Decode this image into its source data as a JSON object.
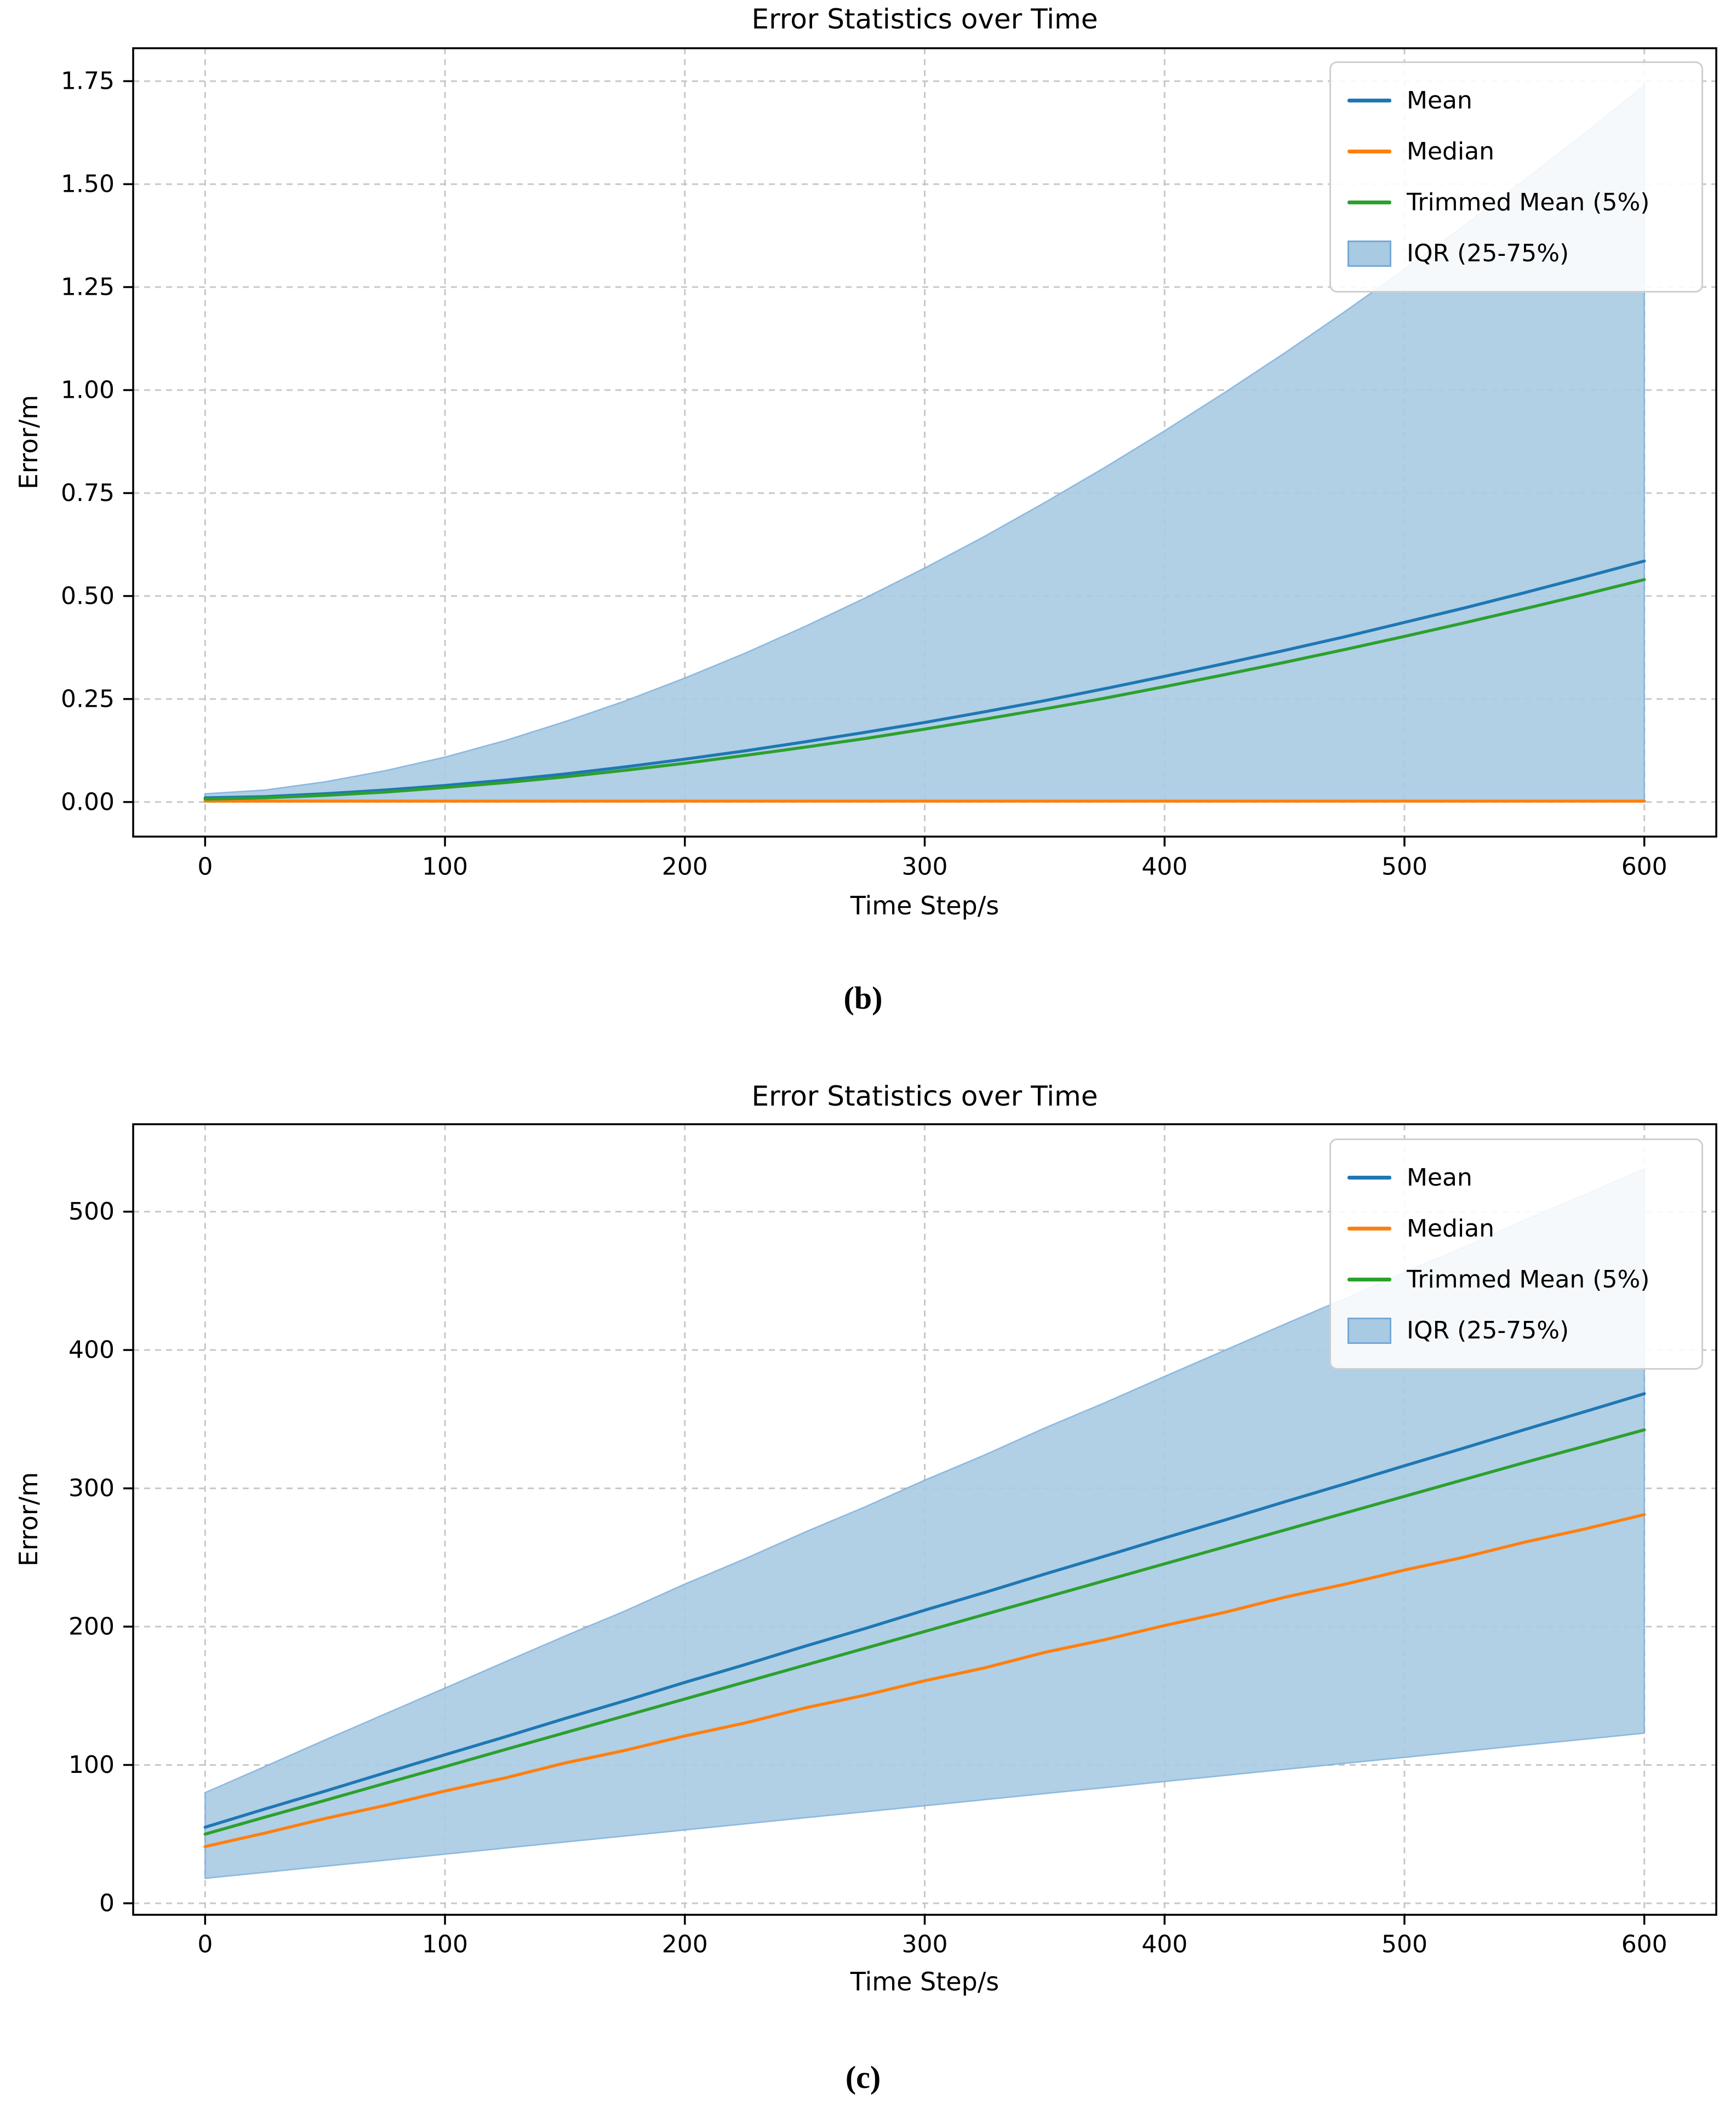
{
  "page": {
    "background": "#ffffff"
  },
  "style": {
    "grid_color": "#c8c8c8",
    "spine_color": "#000000",
    "text_color": "#000000",
    "legend_border": "#cfcfcf"
  },
  "captions": {
    "b": "(b)",
    "c": "(c)"
  },
  "chart_data": [
    {
      "id": "b",
      "type": "line",
      "title": "Error Statistics over Time",
      "xlabel": "Time Step/s",
      "ylabel": "Error/m",
      "grid": true,
      "legend_position": "upper right",
      "xlim": [
        -30,
        630
      ],
      "ylim": [
        -0.084,
        1.83
      ],
      "xticks": [
        0,
        100,
        200,
        300,
        400,
        500,
        600
      ],
      "xtick_labels": [
        "0",
        "100",
        "200",
        "300",
        "400",
        "500",
        "600"
      ],
      "yticks": [
        0.0,
        0.25,
        0.5,
        0.75,
        1.0,
        1.25,
        1.5,
        1.75
      ],
      "ytick_labels": [
        "0.00",
        "0.25",
        "0.50",
        "0.75",
        "1.00",
        "1.25",
        "1.50",
        "1.75"
      ],
      "x": [
        0,
        25,
        50,
        75,
        100,
        125,
        150,
        175,
        200,
        225,
        250,
        275,
        300,
        325,
        350,
        375,
        400,
        425,
        450,
        475,
        500,
        525,
        550,
        575,
        600
      ],
      "series": [
        {
          "name": "Mean",
          "color": "#1f77b4",
          "values": [
            0.01,
            0.013,
            0.02,
            0.029,
            0.04,
            0.053,
            0.068,
            0.085,
            0.104,
            0.124,
            0.146,
            0.169,
            0.193,
            0.219,
            0.246,
            0.275,
            0.305,
            0.336,
            0.368,
            0.401,
            0.436,
            0.471,
            0.508,
            0.546,
            0.585
          ]
        },
        {
          "name": "Median",
          "color": "#ff7f0e",
          "values": [
            0.002,
            0.002,
            0.002,
            0.002,
            0.002,
            0.002,
            0.002,
            0.002,
            0.002,
            0.002,
            0.002,
            0.002,
            0.002,
            0.002,
            0.002,
            0.002,
            0.002,
            0.002,
            0.002,
            0.002,
            0.002,
            0.002,
            0.002,
            0.002,
            0.002
          ]
        },
        {
          "name": "Trimmed Mean (5%)",
          "color": "#2ca02c",
          "values": [
            0.007,
            0.01,
            0.016,
            0.024,
            0.035,
            0.047,
            0.061,
            0.077,
            0.094,
            0.113,
            0.133,
            0.154,
            0.177,
            0.201,
            0.226,
            0.252,
            0.28,
            0.309,
            0.339,
            0.37,
            0.402,
            0.435,
            0.469,
            0.504,
            0.54
          ]
        }
      ],
      "band": {
        "name": "IQR (25-75%)",
        "fill": "#a8cae2",
        "edge": "#74a9d8",
        "upper": [
          0.02,
          0.029,
          0.049,
          0.076,
          0.109,
          0.149,
          0.195,
          0.245,
          0.301,
          0.361,
          0.426,
          0.495,
          0.568,
          0.645,
          0.727,
          0.812,
          0.901,
          0.994,
          1.09,
          1.19,
          1.293,
          1.4,
          1.51,
          1.623,
          1.74
        ],
        "lower": [
          0.001,
          0.001,
          0.001,
          0.001,
          0.001,
          0.001,
          0.001,
          0.001,
          0.001,
          0.001,
          0.001,
          0.001,
          0.001,
          0.001,
          0.001,
          0.001,
          0.001,
          0.001,
          0.001,
          0.001,
          0.001,
          0.001,
          0.001,
          0.001,
          0.001
        ]
      }
    },
    {
      "id": "c",
      "type": "line",
      "title": "Error Statistics over Time",
      "xlabel": "Time Step/s",
      "ylabel": "Error/m",
      "grid": true,
      "legend_position": "upper right",
      "xlim": [
        -30,
        630
      ],
      "ylim": [
        -8.3,
        563.2
      ],
      "xticks": [
        0,
        100,
        200,
        300,
        400,
        500,
        600
      ],
      "xtick_labels": [
        "0",
        "100",
        "200",
        "300",
        "400",
        "500",
        "600"
      ],
      "yticks": [
        0,
        100,
        200,
        300,
        400,
        500
      ],
      "ytick_labels": [
        "0",
        "100",
        "200",
        "300",
        "400",
        "500"
      ],
      "x": [
        0,
        25,
        50,
        75,
        100,
        125,
        150,
        175,
        200,
        225,
        250,
        275,
        300,
        325,
        350,
        375,
        400,
        425,
        450,
        475,
        500,
        525,
        550,
        575,
        600
      ],
      "series": [
        {
          "name": "Mean",
          "color": "#1f77b4",
          "values": [
            55.0,
            68.2,
            81.1,
            94.3,
            107.4,
            120.3,
            133.6,
            146.4,
            159.7,
            172.5,
            185.8,
            198.6,
            211.9,
            224.7,
            238.0,
            250.9,
            264.1,
            277.0,
            290.2,
            303.1,
            316.3,
            329.2,
            342.4,
            355.3,
            368.4
          ]
        },
        {
          "name": "Median",
          "color": "#ff7f0e",
          "values": [
            41.0,
            50.8,
            61.3,
            70.7,
            81.2,
            90.6,
            101.4,
            110.5,
            121.0,
            130.3,
            141.2,
            150.4,
            160.9,
            170.2,
            181.4,
            190.5,
            200.8,
            210.3,
            221.2,
            230.6,
            240.9,
            250.3,
            261.0,
            270.5,
            281.0
          ]
        },
        {
          "name": "Trimmed Mean (5%)",
          "color": "#2ca02c",
          "values": [
            50.0,
            62.3,
            74.4,
            86.7,
            98.8,
            111.1,
            123.3,
            135.5,
            147.7,
            159.9,
            172.1,
            184.3,
            196.5,
            208.8,
            221.0,
            233.2,
            245.4,
            257.6,
            269.8,
            282.0,
            294.2,
            306.4,
            318.6,
            330.4,
            342.3
          ]
        }
      ],
      "band": {
        "name": "IQR (25-75%)",
        "fill": "#a8cae2",
        "edge": "#74a9d8",
        "upper": [
          80.0,
          99.0,
          118.1,
          136.9,
          155.6,
          174.5,
          193.2,
          211.3,
          230.8,
          249.0,
          268.3,
          286.5,
          305.9,
          324.1,
          343.6,
          361.8,
          380.9,
          399.7,
          418.6,
          437.0,
          456.2,
          474.5,
          493.8,
          512.2,
          531.0
        ],
        "lower": [
          18.0,
          22.4,
          26.8,
          31.1,
          35.5,
          39.9,
          44.3,
          48.6,
          53.0,
          57.4,
          61.8,
          66.1,
          70.5,
          74.9,
          79.3,
          83.6,
          88.0,
          92.4,
          96.8,
          101.1,
          105.5,
          109.9,
          114.3,
          118.6,
          123.0
        ]
      }
    }
  ]
}
